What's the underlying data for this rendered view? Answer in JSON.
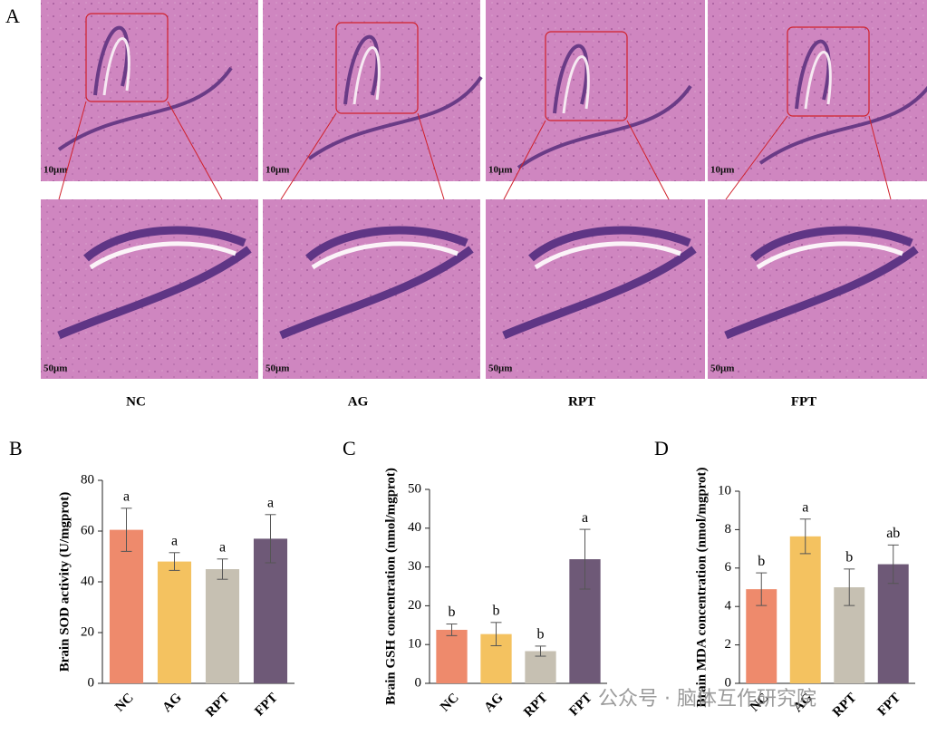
{
  "figure": {
    "panel_label": "A",
    "groups": [
      "NC",
      "AG",
      "RPT",
      "FPT"
    ],
    "scale_top": "10μm",
    "scale_bottom": "50μm",
    "watermark": "公众号 · 脑体互作研究院"
  },
  "chart_data": [
    {
      "type": "bar",
      "label": "B",
      "y_label": "Brain SOD activity (U/mgprot)",
      "categories": [
        "NC",
        "AG",
        "RPT",
        "FPT"
      ],
      "values": [
        60.5,
        48,
        45,
        57
      ],
      "errors": [
        8.5,
        3.5,
        4,
        9.5
      ],
      "annotations": [
        "a",
        "a",
        "a",
        "a"
      ],
      "colors": [
        "#ee8a6c",
        "#f4c260",
        "#c6c0b2",
        "#6e5977"
      ],
      "ylim": [
        0,
        80
      ],
      "yticks": [
        0,
        20,
        40,
        60,
        80
      ]
    },
    {
      "type": "bar",
      "label": "C",
      "y_label": "Brain GSH concentration (nmol/mgprot)",
      "categories": [
        "NC",
        "AG",
        "RPT",
        "FPT"
      ],
      "values": [
        13.8,
        12.7,
        8.3,
        32
      ],
      "errors": [
        1.5,
        3,
        1.3,
        7.7
      ],
      "annotations": [
        "b",
        "b",
        "b",
        "a"
      ],
      "colors": [
        "#ee8a6c",
        "#f4c260",
        "#c6c0b2",
        "#6e5977"
      ],
      "ylim": [
        0,
        50
      ],
      "yticks": [
        0,
        10,
        20,
        30,
        40,
        50
      ]
    },
    {
      "type": "bar",
      "label": "D",
      "y_label": "Brain MDA concentration (nmol/mgprot)",
      "categories": [
        "NC",
        "AG",
        "RPT",
        "FPT"
      ],
      "values": [
        4.9,
        7.65,
        5.0,
        6.2
      ],
      "errors": [
        0.85,
        0.9,
        0.95,
        1.0
      ],
      "annotations": [
        "b",
        "a",
        "b",
        "ab"
      ],
      "colors": [
        "#ee8a6c",
        "#f4c260",
        "#c6c0b2",
        "#6e5977"
      ],
      "ylim": [
        0,
        10
      ],
      "yticks": [
        0,
        2,
        4,
        6,
        8,
        10
      ]
    }
  ]
}
